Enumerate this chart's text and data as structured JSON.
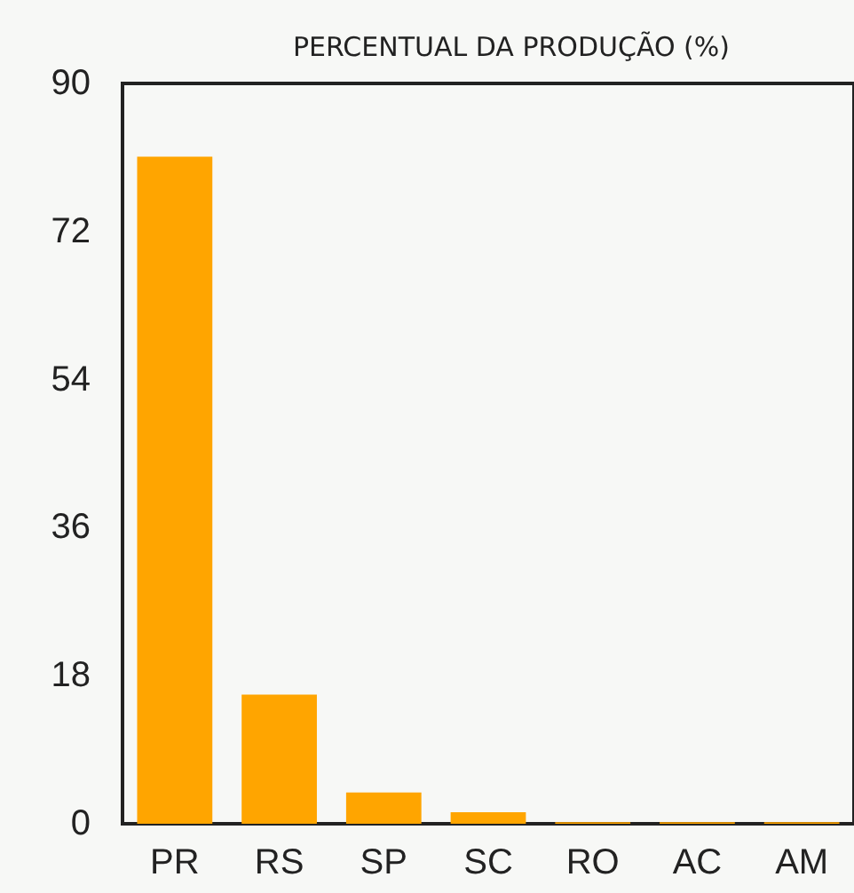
{
  "chart_data": {
    "type": "bar",
    "title": "PERCENTUAL DA PRODUÇÃO (%)",
    "categories": [
      "PR",
      "RS",
      "SP",
      "SC",
      "RO",
      "AC",
      "AM"
    ],
    "values": [
      81.1,
      15.7,
      3.8,
      1.4,
      0.2,
      0.2,
      0.2
    ],
    "color": "#ffa500",
    "ylim": [
      0,
      90
    ],
    "yticks": [
      0,
      18,
      36,
      54,
      72,
      90
    ],
    "grid": false
  }
}
